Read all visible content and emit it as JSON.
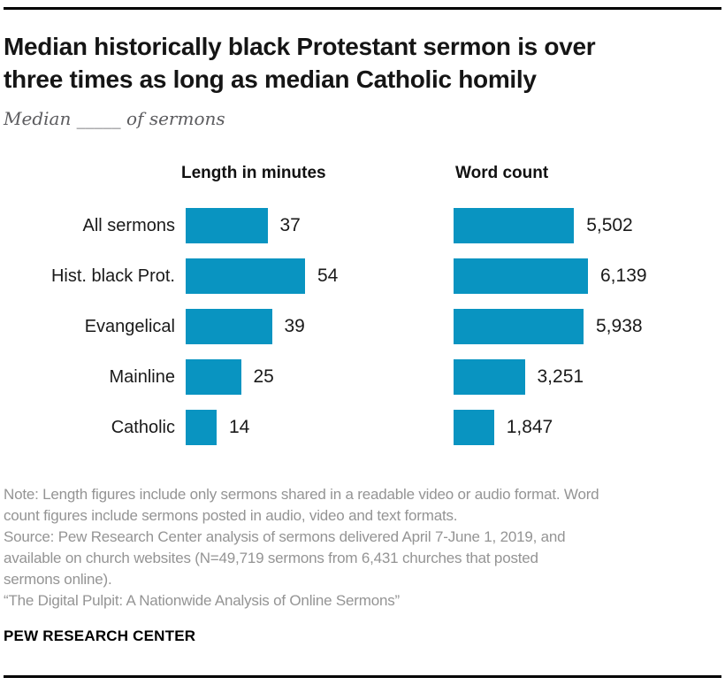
{
  "header": {
    "title_lines": [
      "Median historically black Protestant sermon is over",
      "three times as long as median Catholic homily"
    ],
    "subtitle": "Median _____ of sermons"
  },
  "chart_data": {
    "type": "bar",
    "orientation": "horizontal",
    "grid": false,
    "legend": "none",
    "bar_color": "#0994c1",
    "categories": [
      "All sermons",
      "Hist. black Prot.",
      "Evangelical",
      "Mainline",
      "Catholic"
    ],
    "panels": [
      {
        "title": "Length in minutes",
        "values": [
          37,
          54,
          39,
          25,
          14
        ],
        "value_labels": [
          "37",
          "54",
          "39",
          "25",
          "14"
        ],
        "xlim": [
          0,
          54
        ]
      },
      {
        "title": "Word count",
        "values": [
          5502,
          6139,
          5938,
          3251,
          1847
        ],
        "value_labels": [
          "5,502",
          "6,139",
          "5,938",
          "3,251",
          "1,847"
        ],
        "xlim": [
          0,
          6139
        ]
      }
    ]
  },
  "footer": {
    "note_lines": [
      "Note: Length figures include only sermons shared in a readable video or audio format. Word",
      "count figures include sermons posted in audio, video and text formats."
    ],
    "source_lines": [
      "Source: Pew Research Center analysis of sermons delivered April 7-June 1, 2019, and",
      "available on church websites (N=49,719 sermons from 6,431 churches that posted",
      "sermons online).",
      "“The Digital Pulpit: A Nationwide Analysis of Online Sermons”"
    ],
    "brand": "PEW RESEARCH CENTER"
  }
}
